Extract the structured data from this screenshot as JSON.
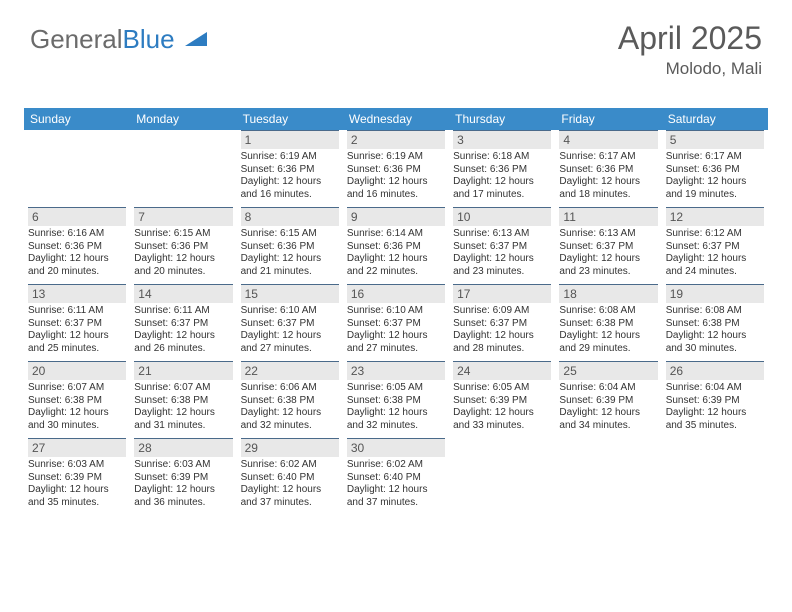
{
  "logo": {
    "part1": "General",
    "part2": "Blue"
  },
  "title": "April 2025",
  "location": "Molodo, Mali",
  "colors": {
    "header_bg": "#3a8bc9",
    "header_text": "#ffffff",
    "daynum_bg": "#e8e8e8",
    "day_border": "#4a6a8a",
    "body_text": "#333333",
    "title_text": "#5a5a5a",
    "logo_gray": "#6b6b6b",
    "logo_blue": "#2d7cc1"
  },
  "weekdays": [
    "Sunday",
    "Monday",
    "Tuesday",
    "Wednesday",
    "Thursday",
    "Friday",
    "Saturday"
  ],
  "weeks": [
    [
      null,
      null,
      {
        "n": "1",
        "sr": "6:19 AM",
        "ss": "6:36 PM",
        "dl": "12 hours and 16 minutes."
      },
      {
        "n": "2",
        "sr": "6:19 AM",
        "ss": "6:36 PM",
        "dl": "12 hours and 16 minutes."
      },
      {
        "n": "3",
        "sr": "6:18 AM",
        "ss": "6:36 PM",
        "dl": "12 hours and 17 minutes."
      },
      {
        "n": "4",
        "sr": "6:17 AM",
        "ss": "6:36 PM",
        "dl": "12 hours and 18 minutes."
      },
      {
        "n": "5",
        "sr": "6:17 AM",
        "ss": "6:36 PM",
        "dl": "12 hours and 19 minutes."
      }
    ],
    [
      {
        "n": "6",
        "sr": "6:16 AM",
        "ss": "6:36 PM",
        "dl": "12 hours and 20 minutes."
      },
      {
        "n": "7",
        "sr": "6:15 AM",
        "ss": "6:36 PM",
        "dl": "12 hours and 20 minutes."
      },
      {
        "n": "8",
        "sr": "6:15 AM",
        "ss": "6:36 PM",
        "dl": "12 hours and 21 minutes."
      },
      {
        "n": "9",
        "sr": "6:14 AM",
        "ss": "6:36 PM",
        "dl": "12 hours and 22 minutes."
      },
      {
        "n": "10",
        "sr": "6:13 AM",
        "ss": "6:37 PM",
        "dl": "12 hours and 23 minutes."
      },
      {
        "n": "11",
        "sr": "6:13 AM",
        "ss": "6:37 PM",
        "dl": "12 hours and 23 minutes."
      },
      {
        "n": "12",
        "sr": "6:12 AM",
        "ss": "6:37 PM",
        "dl": "12 hours and 24 minutes."
      }
    ],
    [
      {
        "n": "13",
        "sr": "6:11 AM",
        "ss": "6:37 PM",
        "dl": "12 hours and 25 minutes."
      },
      {
        "n": "14",
        "sr": "6:11 AM",
        "ss": "6:37 PM",
        "dl": "12 hours and 26 minutes."
      },
      {
        "n": "15",
        "sr": "6:10 AM",
        "ss": "6:37 PM",
        "dl": "12 hours and 27 minutes."
      },
      {
        "n": "16",
        "sr": "6:10 AM",
        "ss": "6:37 PM",
        "dl": "12 hours and 27 minutes."
      },
      {
        "n": "17",
        "sr": "6:09 AM",
        "ss": "6:37 PM",
        "dl": "12 hours and 28 minutes."
      },
      {
        "n": "18",
        "sr": "6:08 AM",
        "ss": "6:38 PM",
        "dl": "12 hours and 29 minutes."
      },
      {
        "n": "19",
        "sr": "6:08 AM",
        "ss": "6:38 PM",
        "dl": "12 hours and 30 minutes."
      }
    ],
    [
      {
        "n": "20",
        "sr": "6:07 AM",
        "ss": "6:38 PM",
        "dl": "12 hours and 30 minutes."
      },
      {
        "n": "21",
        "sr": "6:07 AM",
        "ss": "6:38 PM",
        "dl": "12 hours and 31 minutes."
      },
      {
        "n": "22",
        "sr": "6:06 AM",
        "ss": "6:38 PM",
        "dl": "12 hours and 32 minutes."
      },
      {
        "n": "23",
        "sr": "6:05 AM",
        "ss": "6:38 PM",
        "dl": "12 hours and 32 minutes."
      },
      {
        "n": "24",
        "sr": "6:05 AM",
        "ss": "6:39 PM",
        "dl": "12 hours and 33 minutes."
      },
      {
        "n": "25",
        "sr": "6:04 AM",
        "ss": "6:39 PM",
        "dl": "12 hours and 34 minutes."
      },
      {
        "n": "26",
        "sr": "6:04 AM",
        "ss": "6:39 PM",
        "dl": "12 hours and 35 minutes."
      }
    ],
    [
      {
        "n": "27",
        "sr": "6:03 AM",
        "ss": "6:39 PM",
        "dl": "12 hours and 35 minutes."
      },
      {
        "n": "28",
        "sr": "6:03 AM",
        "ss": "6:39 PM",
        "dl": "12 hours and 36 minutes."
      },
      {
        "n": "29",
        "sr": "6:02 AM",
        "ss": "6:40 PM",
        "dl": "12 hours and 37 minutes."
      },
      {
        "n": "30",
        "sr": "6:02 AM",
        "ss": "6:40 PM",
        "dl": "12 hours and 37 minutes."
      },
      null,
      null,
      null
    ]
  ],
  "labels": {
    "sunrise": "Sunrise:",
    "sunset": "Sunset:",
    "daylight": "Daylight:"
  }
}
